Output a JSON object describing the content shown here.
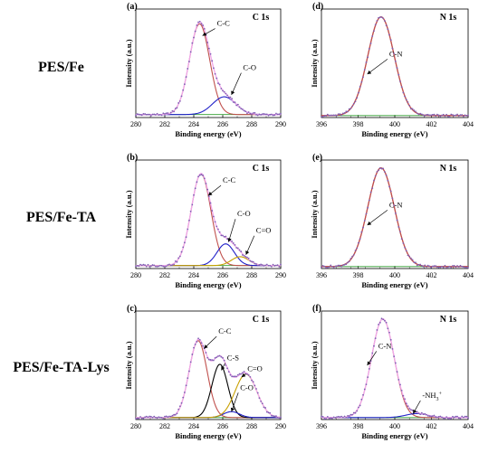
{
  "row_labels": [
    "PES/Fe",
    "PES/Fe-TA",
    "PES/Fe-TA-Lys"
  ],
  "colors": {
    "data": "#7f5fb3",
    "envelope": "#f0a8ea",
    "c_c": "#c0504d",
    "c_o_a": "#2020c8",
    "c_o_b": "#2020c8",
    "c_eq_o": "#c8a000",
    "c_s": "#000000",
    "c_n": "#c0504d",
    "nh3": "#2020c8",
    "baseline": "#2e9e2e"
  },
  "chart_data": [
    {
      "type": "line",
      "panel": "(a)",
      "title": "C 1s",
      "xlabel": "Binding energy (eV)",
      "ylabel": "Intensity (a.u.)",
      "xlim": [
        280,
        290
      ],
      "ylim": [
        0,
        1.1
      ],
      "x_ticks": [
        280,
        282,
        284,
        286,
        288,
        290
      ],
      "baseline": 0.03,
      "envelope": {
        "name": "",
        "color_key": "envelope"
      },
      "series": [
        {
          "name": "C-C",
          "center": 284.4,
          "amp": 0.92,
          "sigma": 0.7,
          "color_key": "c_c"
        },
        {
          "name": "C-O",
          "center": 286.1,
          "amp": 0.18,
          "sigma": 0.8,
          "color_key": "c_o_a"
        }
      ],
      "annotations": [
        {
          "text": "C-C",
          "x": 285.6,
          "y": 0.93,
          "ax": 284.6,
          "ay": 0.83
        },
        {
          "text": "C-O",
          "x": 287.4,
          "y": 0.48,
          "ax": 286.6,
          "ay": 0.23
        }
      ]
    },
    {
      "type": "line",
      "panel": "(d)",
      "title": "N 1s",
      "xlabel": "Binding energy (eV)",
      "ylabel": "Intensity (a.u.)",
      "xlim": [
        396,
        404
      ],
      "ylim": [
        0,
        1.1
      ],
      "x_ticks": [
        396,
        398,
        400,
        402,
        404
      ],
      "baseline": 0.02,
      "envelope": {
        "name": "",
        "color_key": "c_n"
      },
      "series": [
        {
          "name": "C-N",
          "center": 399.25,
          "amp": 1.0,
          "sigma": 0.72,
          "color_key": "c_n"
        }
      ],
      "annotations": [
        {
          "text": "C-N",
          "x": 399.7,
          "y": 0.62,
          "ax": 398.5,
          "ay": 0.44
        }
      ]
    },
    {
      "type": "line",
      "panel": "(b)",
      "title": "C 1s",
      "xlabel": "Binding energy (eV)",
      "ylabel": "Intensity (a.u.)",
      "xlim": [
        280,
        290
      ],
      "ylim": [
        0,
        1.1
      ],
      "x_ticks": [
        280,
        282,
        284,
        286,
        288,
        290
      ],
      "baseline": 0.03,
      "envelope": {
        "name": "",
        "color_key": "envelope"
      },
      "series": [
        {
          "name": "C-C",
          "center": 284.5,
          "amp": 0.93,
          "sigma": 0.68,
          "color_key": "c_c"
        },
        {
          "name": "C-O",
          "center": 286.2,
          "amp": 0.22,
          "sigma": 0.6,
          "color_key": "c_o_b"
        },
        {
          "name": "C=O",
          "center": 287.2,
          "amp": 0.09,
          "sigma": 0.6,
          "color_key": "c_eq_o"
        }
      ],
      "annotations": [
        {
          "text": "C-C",
          "x": 286.0,
          "y": 0.87,
          "ax": 285.0,
          "ay": 0.74
        },
        {
          "text": "C-O",
          "x": 287.0,
          "y": 0.53,
          "ax": 286.4,
          "ay": 0.27
        },
        {
          "text": "C=O",
          "x": 288.3,
          "y": 0.36,
          "ax": 287.6,
          "ay": 0.14
        }
      ]
    },
    {
      "type": "line",
      "panel": "(e)",
      "title": "N 1s",
      "xlabel": "Binding energy (eV)",
      "ylabel": "Intensity (a.u.)",
      "xlim": [
        396,
        404
      ],
      "ylim": [
        0,
        1.1
      ],
      "x_ticks": [
        396,
        398,
        400,
        402,
        404
      ],
      "baseline": 0.02,
      "envelope": {
        "name": "",
        "color_key": "c_n"
      },
      "series": [
        {
          "name": "C-N",
          "center": 399.25,
          "amp": 1.0,
          "sigma": 0.72,
          "color_key": "c_n"
        }
      ],
      "annotations": [
        {
          "text": "C-N",
          "x": 399.7,
          "y": 0.62,
          "ax": 398.5,
          "ay": 0.44
        }
      ]
    },
    {
      "type": "line",
      "panel": "(c)",
      "title": "C 1s",
      "xlabel": "Binding energy (eV)",
      "ylabel": "Intensity (a.u.)",
      "xlim": [
        280,
        290
      ],
      "ylim": [
        0,
        1.1
      ],
      "x_ticks": [
        280,
        282,
        284,
        286,
        288,
        290
      ],
      "baseline": 0.02,
      "envelope": {
        "name": "",
        "color_key": "envelope"
      },
      "series": [
        {
          "name": "C-C",
          "center": 284.3,
          "amp": 0.78,
          "sigma": 0.62,
          "color_key": "c_c"
        },
        {
          "name": "C-S",
          "center": 285.8,
          "amp": 0.54,
          "sigma": 0.55,
          "color_key": "c_s"
        },
        {
          "name": "C-O",
          "center": 286.6,
          "amp": 0.06,
          "sigma": 0.55,
          "color_key": "c_o_b"
        },
        {
          "name": "C=O",
          "center": 287.6,
          "amp": 0.44,
          "sigma": 0.75,
          "color_key": "c_eq_o"
        }
      ],
      "annotations": [
        {
          "text": "C-C",
          "x": 285.7,
          "y": 0.87,
          "ax": 284.7,
          "ay": 0.72
        },
        {
          "text": "C-S",
          "x": 286.3,
          "y": 0.6,
          "ax": 285.9,
          "ay": 0.5
        },
        {
          "text": "C=O",
          "x": 287.7,
          "y": 0.49,
          "ax": 287.3,
          "ay": 0.43
        },
        {
          "text": "C-O",
          "x": 287.2,
          "y": 0.3,
          "ax": 286.6,
          "ay": 0.08
        }
      ]
    },
    {
      "type": "line",
      "panel": "(f)",
      "title": "N 1s",
      "xlabel": "Binding energy (eV)",
      "ylabel": "Intensity (a.u.)",
      "xlim": [
        396,
        404
      ],
      "ylim": [
        0,
        1.1
      ],
      "x_ticks": [
        396,
        398,
        400,
        402,
        404
      ],
      "baseline": 0.02,
      "envelope": {
        "name": "",
        "color_key": "envelope"
      },
      "series": [
        {
          "name": "C-N",
          "center": 399.35,
          "amp": 1.0,
          "sigma": 0.62,
          "color_key": "c_n"
        },
        {
          "name": "-NH3+",
          "center": 401.2,
          "amp": 0.04,
          "sigma": 0.6,
          "color_key": "nh3"
        }
      ],
      "annotations": [
        {
          "text": "C-N",
          "x": 399.1,
          "y": 0.72,
          "ax": 398.5,
          "ay": 0.55
        },
        {
          "text": "-NH3+",
          "x": 401.5,
          "y": 0.22,
          "ax": 401.0,
          "ay": 0.06
        }
      ]
    }
  ]
}
